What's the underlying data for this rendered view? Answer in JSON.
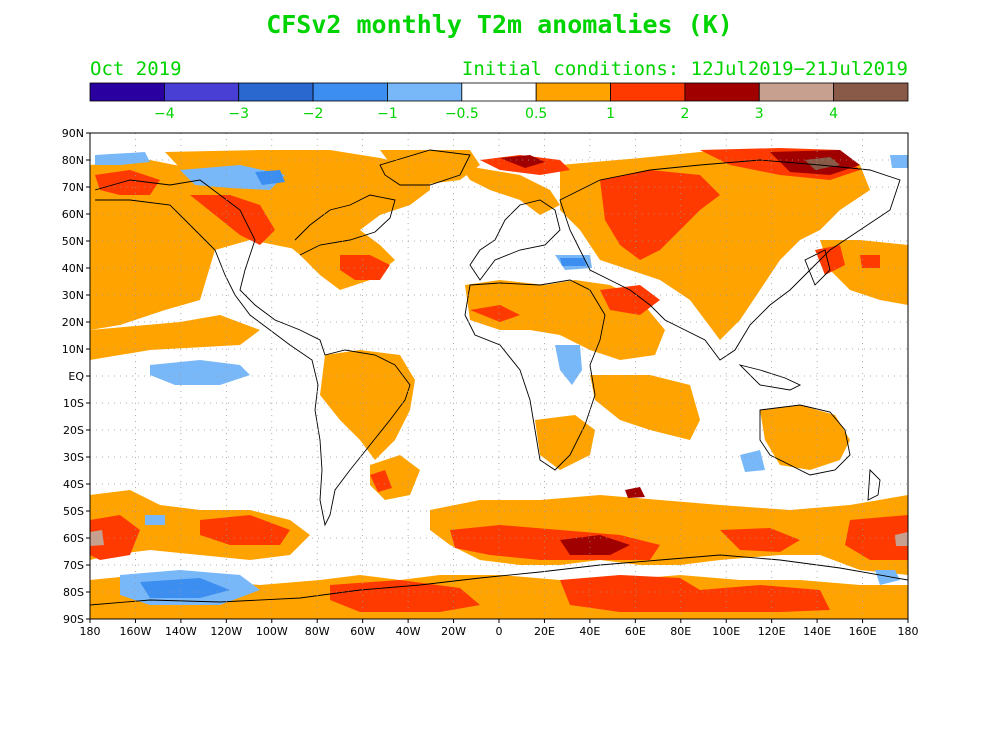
{
  "title": "CFSv2 monthly T2m anomalies (K)",
  "valid_month": "Oct 2019",
  "initial_conditions": "Initial conditions: 12Jul2019−21Jul2019",
  "colorbar": {
    "colors": [
      "#2a00a0",
      "#4a3fd4",
      "#2a68d0",
      "#3c8ef0",
      "#78b8f8",
      "#ffffff",
      "#ffa300",
      "#ff3a00",
      "#a00000",
      "#c8a090",
      "#8a5a48"
    ],
    "labels": [
      "−4",
      "−3",
      "−2",
      "−1",
      "−0.5",
      "0.5",
      "1",
      "2",
      "3",
      "4"
    ]
  },
  "lat_labels": [
    "90N",
    "80N",
    "70N",
    "60N",
    "50N",
    "40N",
    "30N",
    "20N",
    "10N",
    "EQ",
    "10S",
    "20S",
    "30S",
    "40S",
    "50S",
    "60S",
    "70S",
    "80S",
    "90S"
  ],
  "lon_labels": [
    "180",
    "160W",
    "140W",
    "120W",
    "100W",
    "80W",
    "60W",
    "40W",
    "20W",
    "0",
    "20E",
    "40E",
    "60E",
    "80E",
    "100E",
    "120E",
    "140E",
    "160E",
    "180"
  ]
}
